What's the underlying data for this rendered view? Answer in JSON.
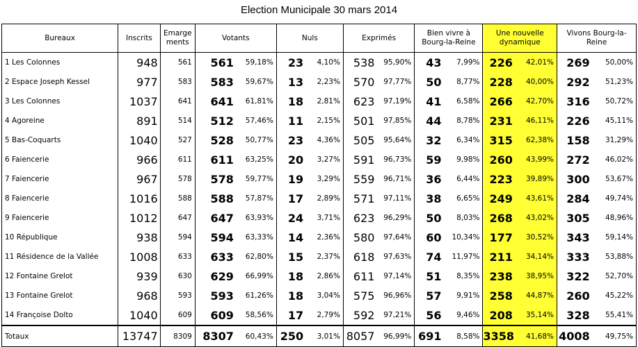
{
  "title": "Election Municipale 30 mars 2014",
  "colors": {
    "highlight": "#ffff33"
  },
  "headers": {
    "bureaux": "Bureaux",
    "inscrits": "Inscrits",
    "emargements_1": "Emarge",
    "emargements_2": "ments",
    "votants": "Votants",
    "nuls": "Nuls",
    "exprimes": "Exprimés",
    "list1_1": "Bien vivre à",
    "list1_2": "Bourg-la-Reine",
    "list2_1": "Une nouvelle",
    "list2_2": "dynamique",
    "list3_1": "Vivons Bourg-la-",
    "list3_2": "Reine"
  },
  "rows": [
    {
      "bureau": "1 Les Colonnes",
      "inscrits": "948",
      "emargements": "561",
      "votants": "561",
      "votants_pct": "59,18%",
      "nuls": "23",
      "nuls_pct": "4,10%",
      "exprimes": "538",
      "exprimes_pct": "95,90%",
      "l1": "43",
      "l1_pct": "7,99%",
      "l2": "226",
      "l2_pct": "42,01%",
      "l3": "269",
      "l3_pct": "50,00%"
    },
    {
      "bureau": "2 Espace Joseph Kessel",
      "inscrits": "977",
      "emargements": "583",
      "votants": "583",
      "votants_pct": "59,67%",
      "nuls": "13",
      "nuls_pct": "2,23%",
      "exprimes": "570",
      "exprimes_pct": "97,77%",
      "l1": "50",
      "l1_pct": "8,77%",
      "l2": "228",
      "l2_pct": "40,00%",
      "l3": "292",
      "l3_pct": "51,23%"
    },
    {
      "bureau": "3 Les Colonnes",
      "inscrits": "1037",
      "emargements": "641",
      "votants": "641",
      "votants_pct": "61,81%",
      "nuls": "18",
      "nuls_pct": "2,81%",
      "exprimes": "623",
      "exprimes_pct": "97,19%",
      "l1": "41",
      "l1_pct": "6,58%",
      "l2": "266",
      "l2_pct": "42,70%",
      "l3": "316",
      "l3_pct": "50,72%"
    },
    {
      "bureau": "4 Agoreine",
      "inscrits": "891",
      "emargements": "514",
      "votants": "512",
      "votants_pct": "57,46%",
      "nuls": "11",
      "nuls_pct": "2,15%",
      "exprimes": "501",
      "exprimes_pct": "97,85%",
      "l1": "44",
      "l1_pct": "8,78%",
      "l2": "231",
      "l2_pct": "46,11%",
      "l3": "226",
      "l3_pct": "45,11%"
    },
    {
      "bureau": "5 Bas-Coquarts",
      "inscrits": "1040",
      "emargements": "527",
      "votants": "528",
      "votants_pct": "50,77%",
      "nuls": "23",
      "nuls_pct": "4,36%",
      "exprimes": "505",
      "exprimes_pct": "95,64%",
      "l1": "32",
      "l1_pct": "6,34%",
      "l2": "315",
      "l2_pct": "62,38%",
      "l3": "158",
      "l3_pct": "31,29%"
    },
    {
      "bureau": "6 Faiencerie",
      "inscrits": "966",
      "emargements": "611",
      "votants": "611",
      "votants_pct": "63,25%",
      "nuls": "20",
      "nuls_pct": "3,27%",
      "exprimes": "591",
      "exprimes_pct": "96,73%",
      "l1": "59",
      "l1_pct": "9,98%",
      "l2": "260",
      "l2_pct": "43,99%",
      "l3": "272",
      "l3_pct": "46,02%"
    },
    {
      "bureau": "7 Faiencerie",
      "inscrits": "967",
      "emargements": "578",
      "votants": "578",
      "votants_pct": "59,77%",
      "nuls": "19",
      "nuls_pct": "3,29%",
      "exprimes": "559",
      "exprimes_pct": "96,71%",
      "l1": "36",
      "l1_pct": "6,44%",
      "l2": "223",
      "l2_pct": "39,89%",
      "l3": "300",
      "l3_pct": "53,67%"
    },
    {
      "bureau": "8 Faiencerie",
      "inscrits": "1016",
      "emargements": "588",
      "votants": "588",
      "votants_pct": "57,87%",
      "nuls": "17",
      "nuls_pct": "2,89%",
      "exprimes": "571",
      "exprimes_pct": "97,11%",
      "l1": "38",
      "l1_pct": "6,65%",
      "l2": "249",
      "l2_pct": "43,61%",
      "l3": "284",
      "l3_pct": "49,74%"
    },
    {
      "bureau": "9 Faiencerie",
      "inscrits": "1012",
      "emargements": "647",
      "votants": "647",
      "votants_pct": "63,93%",
      "nuls": "24",
      "nuls_pct": "3,71%",
      "exprimes": "623",
      "exprimes_pct": "96,29%",
      "l1": "50",
      "l1_pct": "8,03%",
      "l2": "268",
      "l2_pct": "43,02%",
      "l3": "305",
      "l3_pct": "48,96%"
    },
    {
      "bureau": "10 République",
      "inscrits": "938",
      "emargements": "594",
      "votants": "594",
      "votants_pct": "63,33%",
      "nuls": "14",
      "nuls_pct": "2,36%",
      "exprimes": "580",
      "exprimes_pct": "97,64%",
      "l1": "60",
      "l1_pct": "10,34%",
      "l2": "177",
      "l2_pct": "30,52%",
      "l3": "343",
      "l3_pct": "59,14%"
    },
    {
      "bureau": "11 Résidence de la Vallée",
      "inscrits": "1008",
      "emargements": "633",
      "votants": "633",
      "votants_pct": "62,80%",
      "nuls": "15",
      "nuls_pct": "2,37%",
      "exprimes": "618",
      "exprimes_pct": "97,63%",
      "l1": "74",
      "l1_pct": "11,97%",
      "l2": "211",
      "l2_pct": "34,14%",
      "l3": "333",
      "l3_pct": "53,88%"
    },
    {
      "bureau": "12 Fontaine Grelot",
      "inscrits": "939",
      "emargements": "630",
      "votants": "629",
      "votants_pct": "66,99%",
      "nuls": "18",
      "nuls_pct": "2,86%",
      "exprimes": "611",
      "exprimes_pct": "97,14%",
      "l1": "51",
      "l1_pct": "8,35%",
      "l2": "238",
      "l2_pct": "38,95%",
      "l3": "322",
      "l3_pct": "52,70%"
    },
    {
      "bureau": "13 Fontaine Grelot",
      "inscrits": "968",
      "emargements": "593",
      "votants": "593",
      "votants_pct": "61,26%",
      "nuls": "18",
      "nuls_pct": "3,04%",
      "exprimes": "575",
      "exprimes_pct": "96,96%",
      "l1": "57",
      "l1_pct": "9,91%",
      "l2": "258",
      "l2_pct": "44,87%",
      "l3": "260",
      "l3_pct": "45,22%"
    },
    {
      "bureau": "14 Françoise Dolto",
      "inscrits": "1040",
      "emargements": "609",
      "votants": "609",
      "votants_pct": "58,56%",
      "nuls": "17",
      "nuls_pct": "2,79%",
      "exprimes": "592",
      "exprimes_pct": "97,21%",
      "l1": "56",
      "l1_pct": "9,46%",
      "l2": "208",
      "l2_pct": "35,14%",
      "l3": "328",
      "l3_pct": "55,41%"
    }
  ],
  "totals": {
    "bureau": "Totaux",
    "inscrits": "13747",
    "emargements": "8309",
    "votants": "8307",
    "votants_pct": "60,43%",
    "nuls": "250",
    "nuls_pct": "3,01%",
    "exprimes": "8057",
    "exprimes_pct": "96,99%",
    "l1": "691",
    "l1_pct": "8,58%",
    "l2": "3358",
    "l2_pct": "41,68%",
    "l3": "4008",
    "l3_pct": "49,75%"
  }
}
